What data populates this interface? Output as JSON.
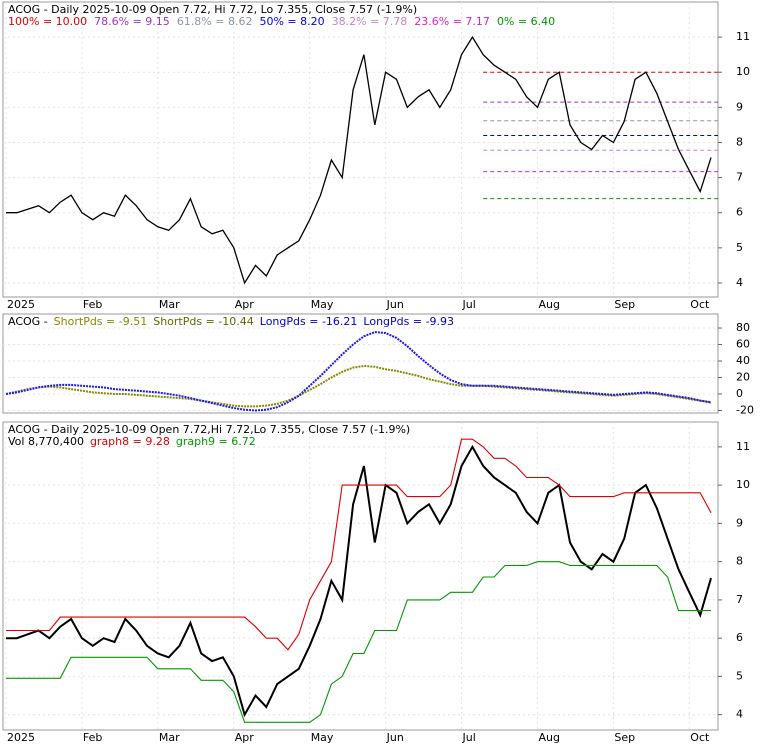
{
  "chart_data": [
    {
      "type": "line",
      "title": "ACOG - Daily 2025-10-09 Open 7.72, Hi 7.72, Lo 7.355, Close 7.57 (-1.9%)",
      "categories": [
        "2025",
        null,
        null,
        null,
        null,
        null,
        null,
        "Feb",
        null,
        null,
        null,
        null,
        null,
        null,
        "Mar",
        null,
        null,
        null,
        null,
        null,
        null,
        "Apr",
        null,
        null,
        null,
        null,
        null,
        null,
        "May",
        null,
        null,
        null,
        null,
        null,
        null,
        "Jun",
        null,
        null,
        null,
        null,
        null,
        null,
        "Jul",
        null,
        null,
        null,
        null,
        null,
        null,
        "Aug",
        null,
        null,
        null,
        null,
        null,
        null,
        "Sep",
        null,
        null,
        null,
        null,
        null,
        null,
        "Oct",
        null,
        null
      ],
      "series": [
        {
          "color": "#000000",
          "values": [
            6.0,
            6.0,
            6.1,
            6.2,
            6.0,
            6.3,
            6.5,
            6.0,
            5.8,
            6.0,
            5.9,
            6.5,
            6.2,
            5.8,
            5.6,
            5.5,
            5.8,
            6.4,
            5.6,
            5.4,
            5.5,
            5.0,
            4.0,
            4.5,
            4.2,
            4.8,
            5.0,
            5.2,
            5.8,
            6.5,
            7.5,
            7.0,
            9.5,
            10.5,
            8.5,
            10.0,
            9.8,
            9.0,
            9.3,
            9.5,
            9.0,
            9.5,
            10.5,
            11.0,
            10.5,
            10.2,
            10.0,
            9.8,
            9.3,
            9.0,
            9.8,
            10.0,
            8.5,
            8.0,
            7.8,
            8.2,
            8.0,
            8.6,
            9.8,
            10.0,
            9.4,
            8.6,
            7.8,
            7.2,
            6.6,
            7.57
          ]
        }
      ],
      "fib_levels": [
        {
          "label": "100% = 10.00",
          "value": 10.0,
          "color": "#e00000"
        },
        {
          "label": "78.6% = 9.15",
          "value": 9.15,
          "color": "#9933cc"
        },
        {
          "label": "61.8% = 8.62",
          "value": 8.62,
          "color": "#8899aa"
        },
        {
          "label": "50% = 8.20",
          "value": 8.2,
          "color": "#0000ee"
        },
        {
          "label": "38.2% = 7.78",
          "value": 7.78,
          "color": "#bb88cc"
        },
        {
          "label": "23.6% = 7.17",
          "value": 7.17,
          "color": "#dd22cc"
        },
        {
          "label": "0% = 6.40",
          "value": 6.4,
          "color": "#009900"
        }
      ],
      "ylim": [
        3.6,
        12.0
      ],
      "yticks": [
        4,
        5,
        6,
        7,
        8,
        9,
        10,
        11
      ],
      "grid": true
    },
    {
      "type": "line",
      "title": "ACOG -",
      "legend": [
        {
          "label": "ShortPds = -9.51",
          "color": "#888800"
        },
        {
          "label": "ShortPds = -10.44",
          "color": "#666600"
        },
        {
          "label": "LongPds = -16.21",
          "color": "#0000cc"
        },
        {
          "label": "LongPds = -9.93",
          "color": "#0000cc"
        }
      ],
      "series": [
        {
          "color": "#888800",
          "values": [
            0,
            3,
            6,
            8,
            9,
            8,
            6,
            4,
            2,
            1,
            0,
            0,
            -1,
            -2,
            -3,
            -4,
            -5,
            -6,
            -8,
            -10,
            -12,
            -14,
            -15,
            -15,
            -14,
            -12,
            -8,
            -2,
            5,
            12,
            20,
            27,
            32,
            34,
            33,
            30,
            28,
            25,
            22,
            18,
            15,
            12,
            10,
            10,
            10,
            9,
            8,
            7,
            6,
            5,
            4,
            3,
            2,
            1,
            0,
            -1,
            -2,
            -1,
            0,
            1,
            0,
            -2,
            -4,
            -6,
            -8,
            -10.44
          ]
        },
        {
          "color": "#1a1aee",
          "values": [
            0,
            2,
            5,
            8,
            10,
            11,
            11,
            10,
            9,
            8,
            6,
            5,
            4,
            3,
            2,
            0,
            -2,
            -5,
            -8,
            -11,
            -14,
            -17,
            -19,
            -20,
            -19,
            -16,
            -10,
            -2,
            10,
            22,
            35,
            48,
            60,
            70,
            75,
            74,
            68,
            58,
            46,
            35,
            25,
            17,
            12,
            10,
            10,
            10,
            9,
            8,
            7,
            6,
            5,
            4,
            3,
            2,
            1,
            0,
            -1,
            0,
            1,
            2,
            1,
            -1,
            -3,
            -5,
            -8,
            -9.93
          ]
        }
      ],
      "ylim": [
        -23,
        97
      ],
      "yticks": [
        -20,
        0,
        20,
        40,
        60,
        80
      ],
      "grid": true
    },
    {
      "type": "line",
      "title": "ACOG - Daily 2025-10-09 Open 7.72,Hi 7.72,Lo 7.355, Close 7.57 (-1.9%)",
      "subtitle": "Vol 8,770,400",
      "categories": [
        "2025",
        null,
        null,
        null,
        null,
        null,
        null,
        "Feb",
        null,
        null,
        null,
        null,
        null,
        null,
        "Mar",
        null,
        null,
        null,
        null,
        null,
        null,
        "Apr",
        null,
        null,
        null,
        null,
        null,
        null,
        "May",
        null,
        null,
        null,
        null,
        null,
        null,
        "Jun",
        null,
        null,
        null,
        null,
        null,
        null,
        "Jul",
        null,
        null,
        null,
        null,
        null,
        null,
        "Aug",
        null,
        null,
        null,
        null,
        null,
        null,
        "Sep",
        null,
        null,
        null,
        null,
        null,
        null,
        "Oct",
        null,
        null
      ],
      "legend": [
        {
          "label": "graph8 = 9.28",
          "color": "#dd0000"
        },
        {
          "label": "graph9 = 6.72",
          "color": "#009900"
        }
      ],
      "series": [
        {
          "color": "#dd0000",
          "values": [
            6.2,
            6.2,
            6.2,
            6.2,
            6.2,
            6.55,
            6.55,
            6.55,
            6.55,
            6.55,
            6.55,
            6.55,
            6.55,
            6.55,
            6.55,
            6.55,
            6.55,
            6.55,
            6.55,
            6.55,
            6.55,
            6.55,
            6.55,
            6.3,
            6.0,
            6.0,
            5.7,
            6.1,
            7.0,
            7.5,
            8.0,
            10.0,
            10.0,
            10.0,
            10.0,
            10.0,
            10.0,
            9.7,
            9.7,
            9.7,
            9.7,
            10.0,
            11.2,
            11.2,
            11.0,
            10.7,
            10.7,
            10.5,
            10.2,
            10.2,
            10.2,
            10.0,
            9.7,
            9.7,
            9.7,
            9.7,
            9.7,
            9.8,
            9.8,
            9.8,
            9.8,
            9.8,
            9.8,
            9.8,
            9.8,
            9.28
          ]
        },
        {
          "color": "#009900",
          "values": [
            4.95,
            4.95,
            4.95,
            4.95,
            4.95,
            4.95,
            5.5,
            5.5,
            5.5,
            5.5,
            5.5,
            5.5,
            5.5,
            5.5,
            5.2,
            5.2,
            5.2,
            5.2,
            4.9,
            4.9,
            4.9,
            4.6,
            3.8,
            3.8,
            3.8,
            3.8,
            3.8,
            3.8,
            3.8,
            4.0,
            4.8,
            5.0,
            5.6,
            5.6,
            6.2,
            6.2,
            6.2,
            7.0,
            7.0,
            7.0,
            7.0,
            7.2,
            7.2,
            7.2,
            7.6,
            7.6,
            7.9,
            7.9,
            7.9,
            8.0,
            8.0,
            8.0,
            7.9,
            7.9,
            7.9,
            7.9,
            7.9,
            7.9,
            7.9,
            7.9,
            7.9,
            7.6,
            6.72,
            6.72,
            6.72,
            6.72
          ]
        }
      ],
      "ylim": [
        3.6,
        11.65
      ],
      "yticks": [
        4,
        5,
        6,
        7,
        8,
        9,
        10,
        11
      ],
      "grid": true
    }
  ]
}
